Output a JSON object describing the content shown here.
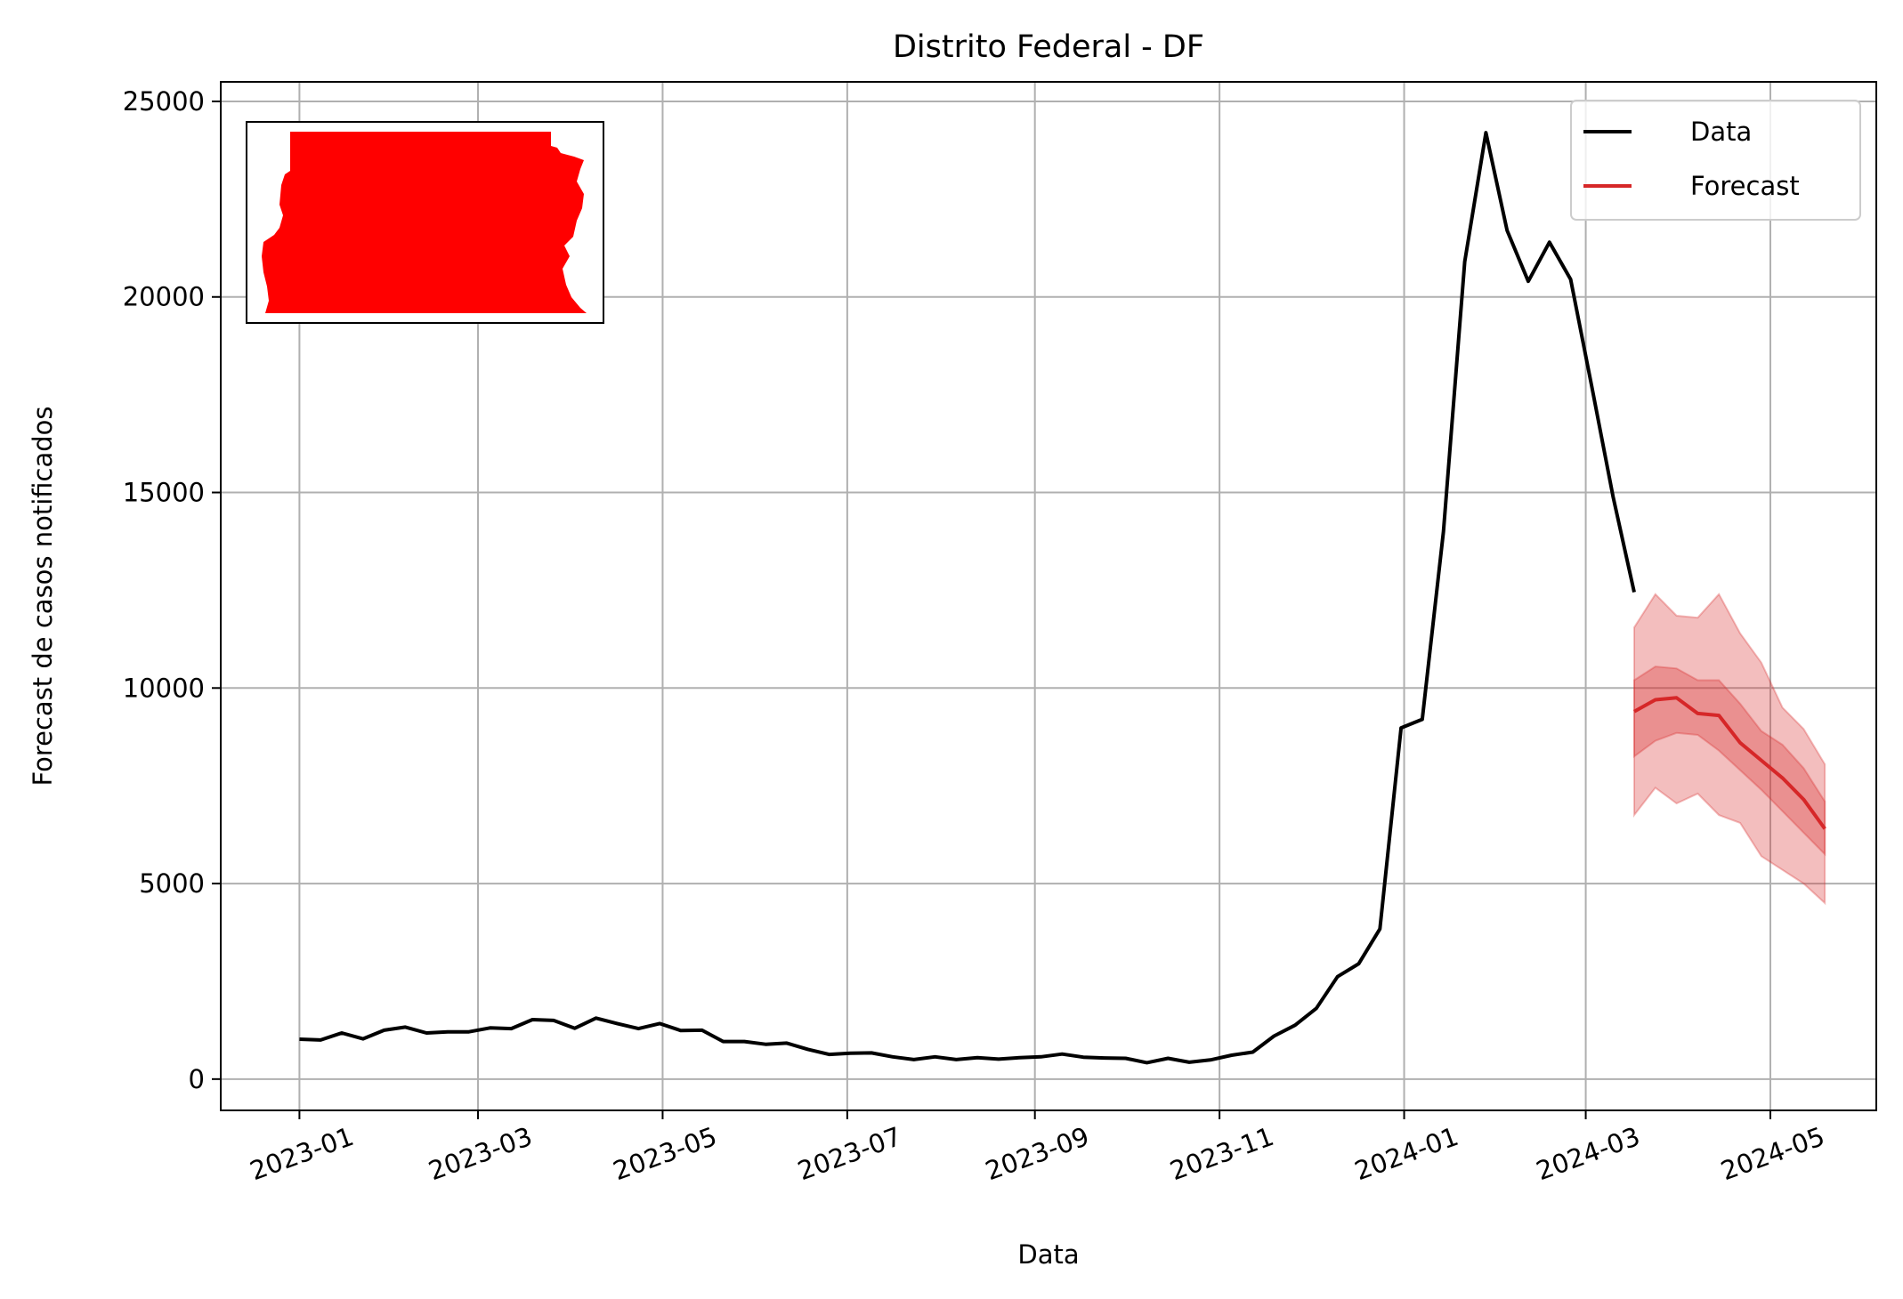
{
  "chart_data": {
    "type": "line",
    "title": "Distrito Federal - DF",
    "xlabel": "Data",
    "ylabel": "Forecast de casos notificados",
    "xlim": [
      "2022-12-06",
      "2024-06-05"
    ],
    "ylim": [
      -800,
      25500
    ],
    "x_ticks": [
      "2023-01-01",
      "2023-03-01",
      "2023-05-01",
      "2023-07-01",
      "2023-09-01",
      "2023-11-01",
      "2024-01-01",
      "2024-03-01",
      "2024-05-01"
    ],
    "x_tick_labels": [
      "2023-01",
      "2023-03",
      "2023-05",
      "2023-07",
      "2023-09",
      "2023-11",
      "2024-01",
      "2024-03",
      "2024-05"
    ],
    "y_ticks": [
      0,
      5000,
      10000,
      15000,
      20000,
      25000
    ],
    "y_tick_labels": [
      "0",
      "5000",
      "10000",
      "15000",
      "20000",
      "25000"
    ],
    "grid": true,
    "legend": {
      "position": "top-right"
    },
    "inset": {
      "description": "red map silhouette",
      "color": "#ff0000",
      "position": "top-left"
    },
    "series": [
      {
        "name": "Data",
        "color": "#000000",
        "x": [
          "2023-01-01",
          "2023-01-08",
          "2023-01-15",
          "2023-01-22",
          "2023-01-29",
          "2023-02-05",
          "2023-02-12",
          "2023-02-19",
          "2023-02-26",
          "2023-03-05",
          "2023-03-12",
          "2023-03-19",
          "2023-03-26",
          "2023-04-02",
          "2023-04-09",
          "2023-04-16",
          "2023-04-23",
          "2023-04-30",
          "2023-05-07",
          "2023-05-14",
          "2023-05-21",
          "2023-05-28",
          "2023-06-04",
          "2023-06-11",
          "2023-06-18",
          "2023-06-25",
          "2023-07-02",
          "2023-07-09",
          "2023-07-16",
          "2023-07-23",
          "2023-07-30",
          "2023-08-06",
          "2023-08-13",
          "2023-08-20",
          "2023-08-27",
          "2023-09-03",
          "2023-09-10",
          "2023-09-17",
          "2023-09-24",
          "2023-10-01",
          "2023-10-08",
          "2023-10-15",
          "2023-10-22",
          "2023-10-29",
          "2023-11-05",
          "2023-11-12",
          "2023-11-19",
          "2023-11-26",
          "2023-12-03",
          "2023-12-10",
          "2023-12-17",
          "2023-12-24",
          "2023-12-31",
          "2024-01-07",
          "2024-01-14",
          "2024-01-21",
          "2024-01-28",
          "2024-02-04",
          "2024-02-11",
          "2024-02-18",
          "2024-02-25",
          "2024-03-03",
          "2024-03-10",
          "2024-03-17"
        ],
        "values": [
          1020,
          1000,
          1180,
          1030,
          1250,
          1330,
          1180,
          1210,
          1210,
          1310,
          1290,
          1520,
          1500,
          1300,
          1560,
          1420,
          1290,
          1420,
          1240,
          1250,
          960,
          960,
          890,
          920,
          760,
          630,
          660,
          670,
          570,
          500,
          570,
          500,
          550,
          510,
          550,
          570,
          640,
          560,
          540,
          530,
          420,
          530,
          430,
          490,
          610,
          690,
          1100,
          1380,
          1810,
          2620,
          2950,
          3840,
          8980,
          9200,
          14000,
          20900,
          24200,
          21700,
          20400,
          21400,
          20450,
          17700,
          14900,
          12450
        ]
      },
      {
        "name": "Forecast",
        "color": "#d62728",
        "x": [
          "2024-03-17",
          "2024-03-24",
          "2024-03-31",
          "2024-04-07",
          "2024-04-14",
          "2024-04-21",
          "2024-04-28",
          "2024-05-05",
          "2024-05-12",
          "2024-05-19"
        ],
        "values": [
          9400,
          9700,
          9750,
          9350,
          9300,
          8600,
          8150,
          7700,
          7150,
          6400
        ],
        "band_inner": {
          "lower": [
            8250,
            8650,
            8850,
            8800,
            8400,
            7900,
            7400,
            6850,
            6300,
            5750
          ],
          "upper": [
            10200,
            10550,
            10500,
            10200,
            10200,
            9600,
            8900,
            8550,
            7950,
            7100
          ]
        },
        "band_outer": {
          "lower": [
            6750,
            7450,
            7050,
            7300,
            6750,
            6550,
            5700,
            5350,
            5000,
            4500
          ],
          "upper": [
            11550,
            12400,
            11850,
            11800,
            12400,
            11400,
            10650,
            9500,
            8950,
            8050
          ]
        }
      }
    ]
  }
}
